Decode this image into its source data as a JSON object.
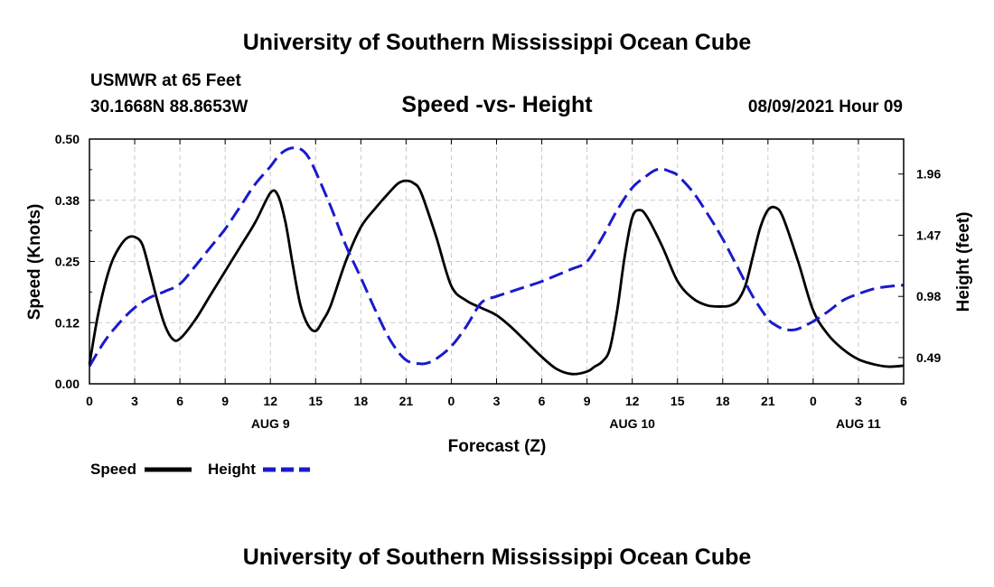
{
  "header": {
    "title_top": "University of Southern Mississippi Ocean Cube",
    "station": "USMWR at 65 Feet",
    "location": "30.1668N  88.8653W",
    "datetime": "08/09/2021 Hour 09",
    "title_bottom": "University of Southern Mississippi Ocean Cube"
  },
  "colors": {
    "speed": "#000000",
    "height": "#1a1acc"
  },
  "chart_data": {
    "type": "line",
    "title": "Speed -vs- Height",
    "xlabel": "Forecast (Z)",
    "ylabel_left": "Speed (Knots)",
    "ylabel_right": "Height (feet)",
    "x_range_hours": [
      0,
      54
    ],
    "ylim_left": [
      0,
      0.5
    ],
    "ylim_right": [
      0.28,
      2.24
    ],
    "x_ticks": [
      {
        "h": 0,
        "label": "0"
      },
      {
        "h": 3,
        "label": "3"
      },
      {
        "h": 6,
        "label": "6"
      },
      {
        "h": 9,
        "label": "9"
      },
      {
        "h": 12,
        "label": "12"
      },
      {
        "h": 15,
        "label": "15"
      },
      {
        "h": 18,
        "label": "18"
      },
      {
        "h": 21,
        "label": "21"
      },
      {
        "h": 24,
        "label": "0"
      },
      {
        "h": 27,
        "label": "3"
      },
      {
        "h": 30,
        "label": "6"
      },
      {
        "h": 33,
        "label": "9"
      },
      {
        "h": 36,
        "label": "12"
      },
      {
        "h": 39,
        "label": "15"
      },
      {
        "h": 42,
        "label": "18"
      },
      {
        "h": 45,
        "label": "21"
      },
      {
        "h": 48,
        "label": "0"
      },
      {
        "h": 51,
        "label": "3"
      },
      {
        "h": 54,
        "label": "6"
      }
    ],
    "date_labels": [
      {
        "h": 12,
        "label": "AUG 9"
      },
      {
        "h": 36,
        "label": "AUG 10"
      },
      {
        "h": 51,
        "label": "AUG 11"
      }
    ],
    "y_left_ticks": [
      {
        "v": 0.0,
        "label": "0.00"
      },
      {
        "v": 0.125,
        "label": "0.12"
      },
      {
        "v": 0.25,
        "label": "0.25"
      },
      {
        "v": 0.375,
        "label": "0.38"
      },
      {
        "v": 0.5,
        "label": "0.50"
      }
    ],
    "y_right_ticks": [
      {
        "v": 0.49,
        "label": "0.49"
      },
      {
        "v": 0.98,
        "label": "0.98"
      },
      {
        "v": 1.47,
        "label": "1.47"
      },
      {
        "v": 1.96,
        "label": "1.96"
      }
    ],
    "series": [
      {
        "name": "Speed",
        "axis": "left",
        "x": [
          0,
          0.5,
          1,
          1.5,
          2,
          2.5,
          3,
          3.5,
          4,
          4.5,
          5,
          5.5,
          6,
          7,
          8,
          9,
          10,
          11,
          12,
          12.5,
          13,
          13.5,
          14,
          14.5,
          15,
          15.5,
          16,
          17,
          18,
          19,
          20,
          20.5,
          21,
          21.5,
          22,
          23,
          24,
          25,
          26,
          27,
          28,
          29,
          30,
          31,
          32,
          33,
          33.5,
          34,
          34.5,
          35,
          35.5,
          36,
          36.5,
          37,
          38,
          39,
          40,
          41,
          42,
          42.5,
          43,
          43.5,
          44,
          44.5,
          45,
          45.5,
          46,
          47,
          48,
          49,
          50,
          51,
          52,
          53,
          54
        ],
        "values": [
          0.04,
          0.13,
          0.2,
          0.25,
          0.28,
          0.298,
          0.3,
          0.285,
          0.23,
          0.17,
          0.12,
          0.092,
          0.092,
          0.13,
          0.18,
          0.23,
          0.28,
          0.33,
          0.39,
          0.385,
          0.33,
          0.24,
          0.16,
          0.12,
          0.108,
          0.13,
          0.16,
          0.25,
          0.32,
          0.36,
          0.395,
          0.41,
          0.415,
          0.41,
          0.39,
          0.3,
          0.2,
          0.17,
          0.155,
          0.14,
          0.115,
          0.085,
          0.055,
          0.03,
          0.02,
          0.025,
          0.035,
          0.045,
          0.07,
          0.15,
          0.26,
          0.34,
          0.355,
          0.34,
          0.28,
          0.21,
          0.175,
          0.16,
          0.158,
          0.16,
          0.17,
          0.2,
          0.26,
          0.32,
          0.355,
          0.36,
          0.34,
          0.25,
          0.15,
          0.1,
          0.07,
          0.05,
          0.04,
          0.035,
          0.037
        ]
      },
      {
        "name": "Height",
        "axis": "right",
        "x": [
          0,
          1,
          2,
          3,
          4,
          5,
          6,
          7,
          8,
          9,
          10,
          11,
          12,
          12.5,
          13,
          13.5,
          14,
          14.5,
          15,
          16,
          17,
          18,
          19,
          20,
          21,
          22,
          22.5,
          23,
          24,
          25,
          26,
          27,
          28,
          29,
          30,
          31,
          32,
          33,
          34,
          35,
          36,
          37,
          37.5,
          38,
          38.5,
          39,
          40,
          41,
          42,
          43,
          44,
          45,
          45.5,
          46,
          46.5,
          47,
          48,
          49,
          50,
          51,
          52,
          53,
          54
        ],
        "values": [
          0.42,
          0.62,
          0.77,
          0.89,
          0.97,
          1.02,
          1.08,
          1.22,
          1.37,
          1.52,
          1.7,
          1.88,
          2.02,
          2.1,
          2.15,
          2.17,
          2.16,
          2.1,
          1.98,
          1.7,
          1.39,
          1.13,
          0.86,
          0.62,
          0.47,
          0.44,
          0.45,
          0.48,
          0.58,
          0.74,
          0.93,
          0.98,
          1.02,
          1.06,
          1.1,
          1.15,
          1.2,
          1.26,
          1.45,
          1.67,
          1.85,
          1.95,
          1.99,
          2.0,
          1.98,
          1.95,
          1.82,
          1.64,
          1.44,
          1.21,
          0.98,
          0.8,
          0.75,
          0.72,
          0.71,
          0.72,
          0.78,
          0.86,
          0.95,
          1.0,
          1.04,
          1.06,
          1.07
        ]
      }
    ],
    "legend": [
      {
        "name": "Speed",
        "style": "solid"
      },
      {
        "name": "Height",
        "style": "dashed"
      }
    ]
  }
}
